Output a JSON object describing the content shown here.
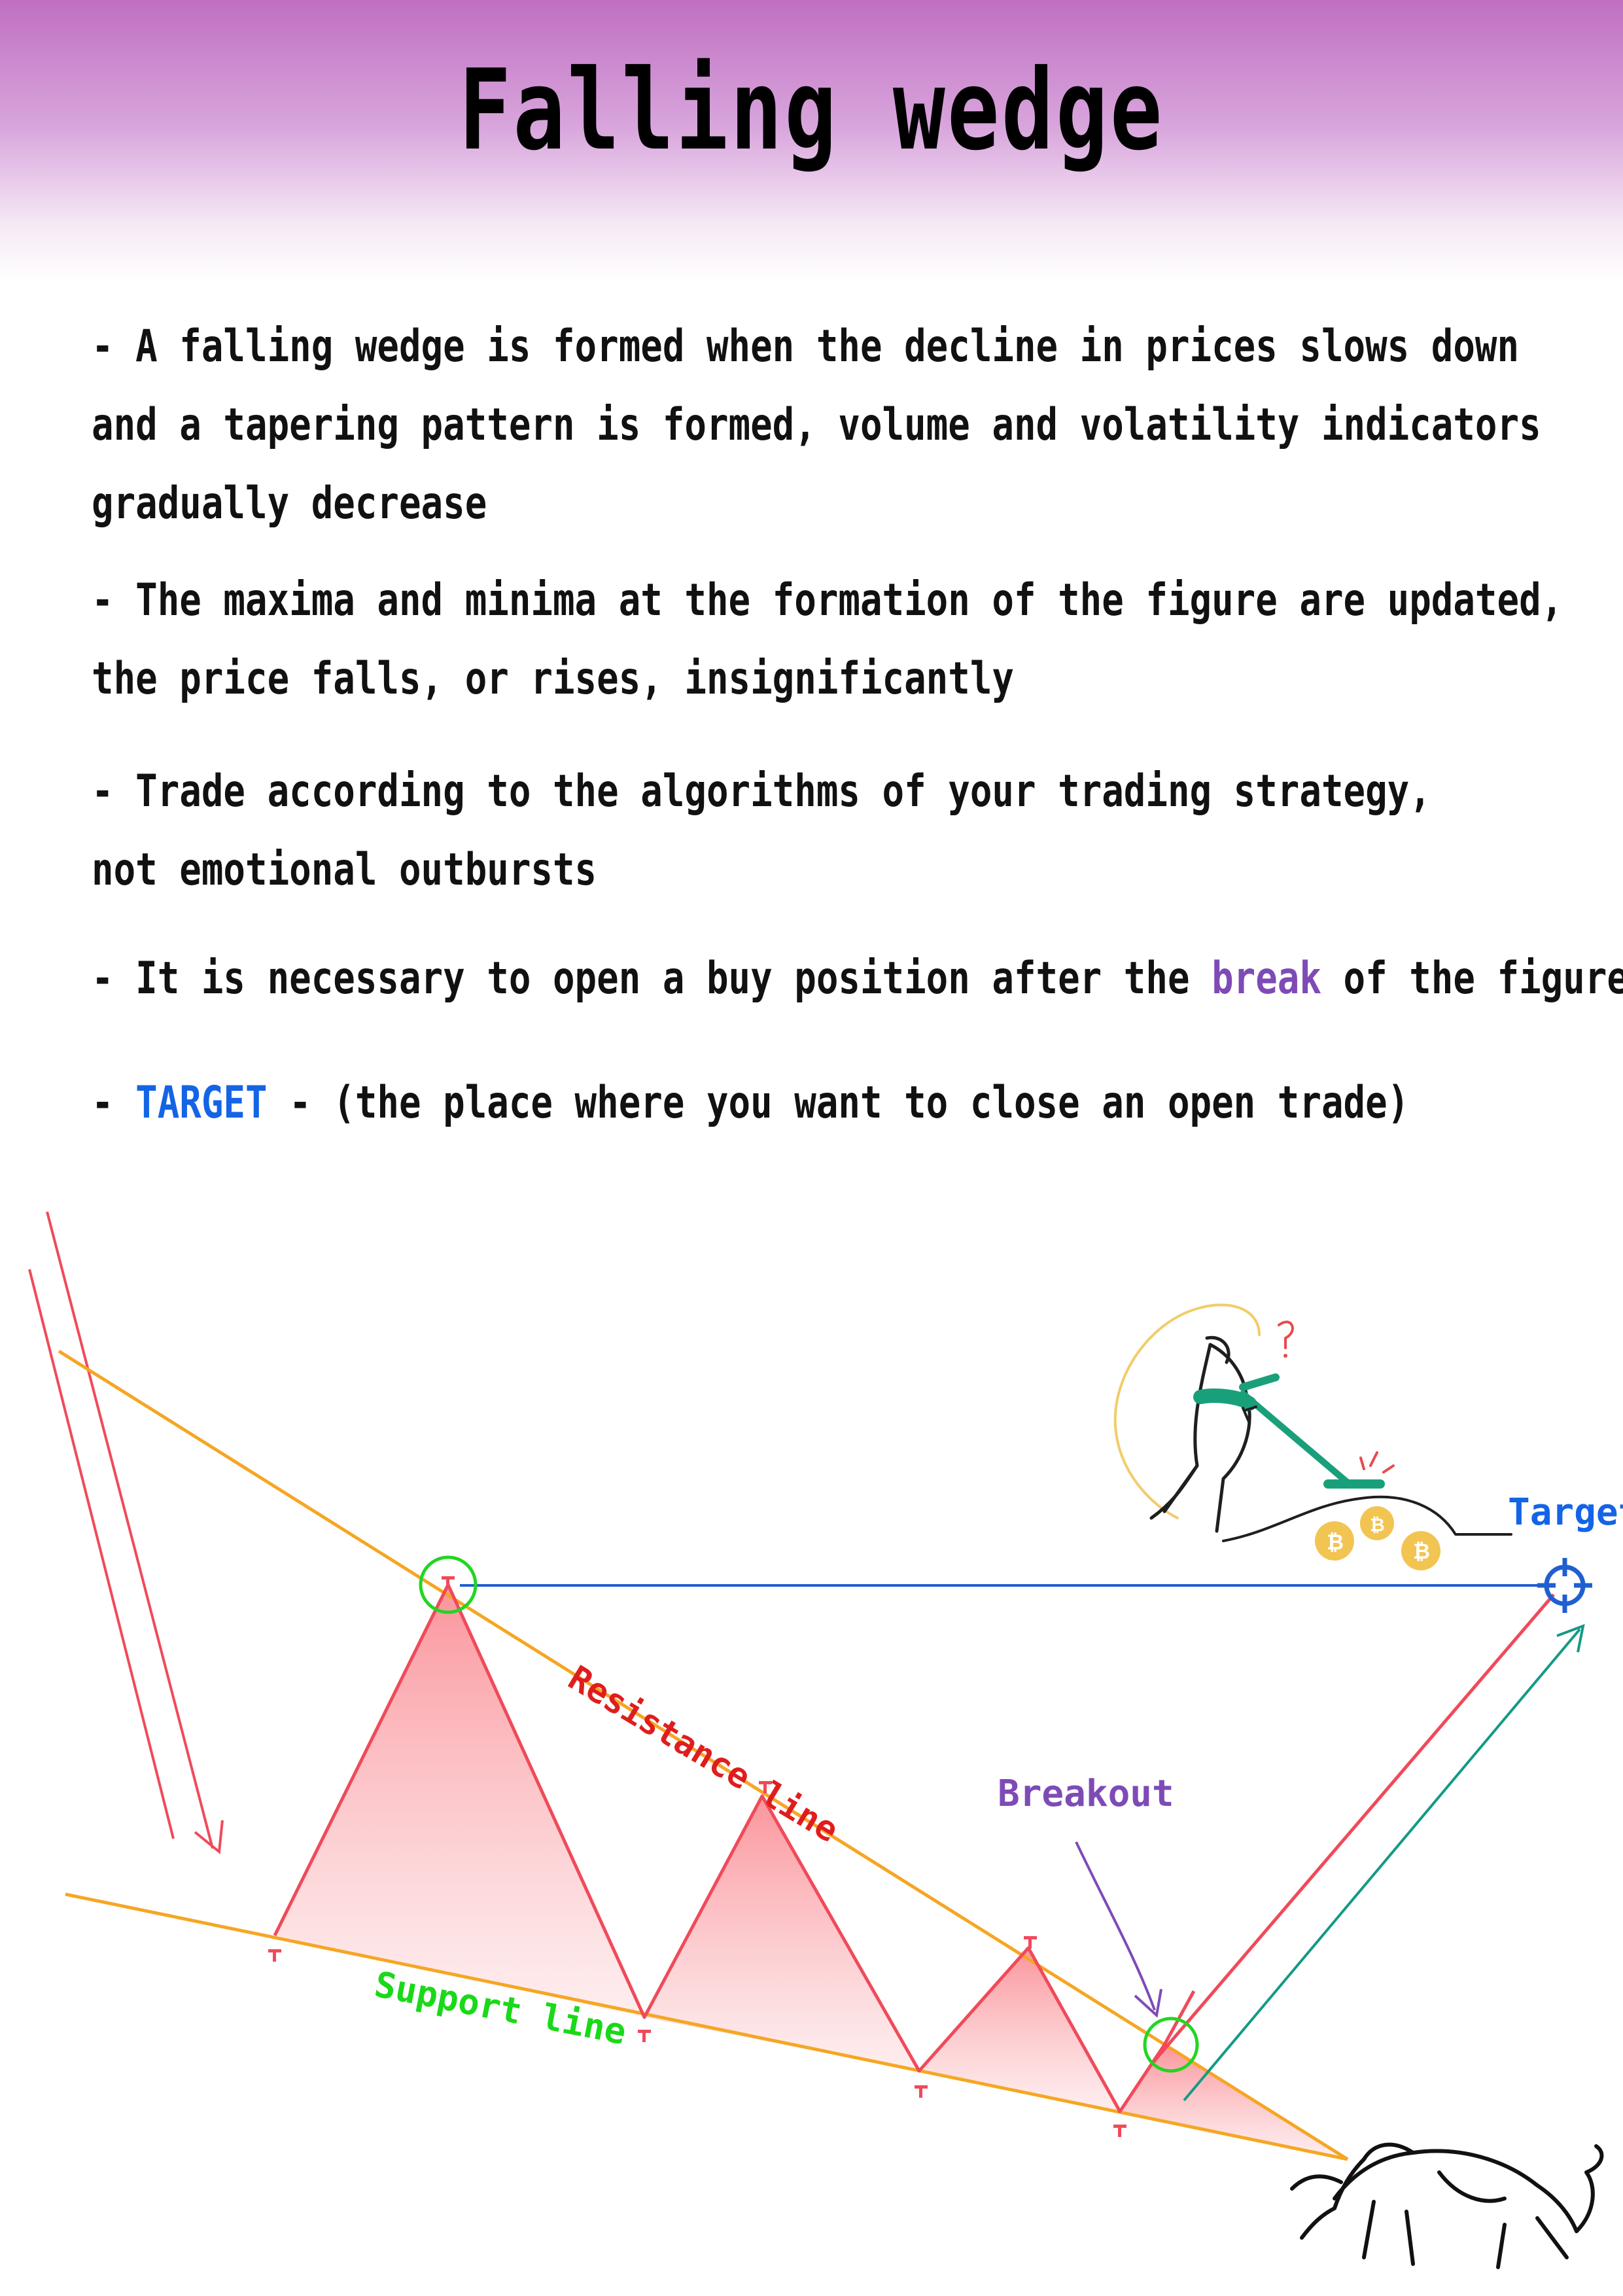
{
  "title": "Falling wedge",
  "bullets": {
    "b1": {
      "line1": "- A falling wedge is formed when the decline in prices slows down",
      "line2": "and a tapering pattern is formed, volume and volatility indicators",
      "line3": " gradually decrease"
    },
    "b2": {
      "line1": "- The maxima and minima at the formation of the figure are updated,",
      "line2": " the price falls, or rises, insignificantly"
    },
    "b3": {
      "line1": "- Trade according to the algorithms of your trading strategy,",
      "line2": "not emotional outbursts"
    },
    "b4": {
      "before": "- It is necessary to open a buy position after the ",
      "keyword": "break",
      "after": " of the figure"
    },
    "b5": {
      "before": "- ",
      "keyword": "TARGET",
      "after": " - (the place where you want to close an open trade)"
    }
  },
  "diagram": {
    "resistance_label": "Resistance line",
    "support_label": "Support line",
    "breakout_label": "Breakout",
    "target_label": "Target"
  },
  "colors": {
    "header": "#c06fc2",
    "keyword_break": "#7e4bb6",
    "keyword_target": "#1464e6",
    "trendlines": "#f5a623",
    "price": "#f04a5a",
    "pivot_circle": "#22d622",
    "target_line": "#1f5fd1",
    "momentum_arrow": "#139a86",
    "support_label": "#19d919",
    "resistance_label": "#e01d1d",
    "breakout_label": "#7e4bb6"
  },
  "icons": {
    "target_marker": "crosshair-icon",
    "illustration": "treasure-hunter-illustration",
    "bull": "bull-icon"
  }
}
